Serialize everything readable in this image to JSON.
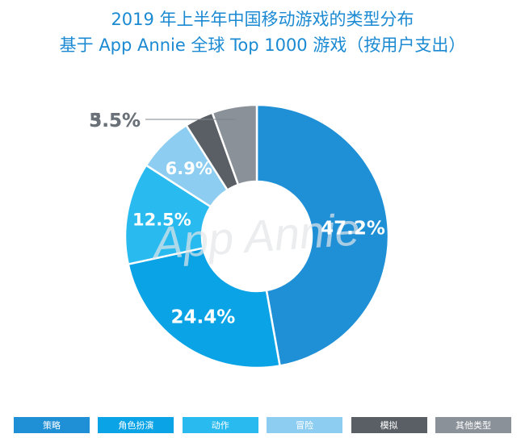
{
  "title": "2019 年上半年中国移动游戏的类型分布",
  "subtitle": "基于 App Annie 全球 Top 1000 游戏（按用户支出）",
  "watermark": "App Annie",
  "chart_data": {
    "type": "pie",
    "variant": "donut",
    "title": "2019 年上半年中国移动游戏的类型分布",
    "subtitle": "基于 App Annie 全球 Top 1000 游戏（按用户支出）",
    "unit": "%",
    "legend_position": "bottom",
    "slices": [
      {
        "label": "策略",
        "value": 47.2,
        "display": "47.2%",
        "color": "#1f8fd6"
      },
      {
        "label": "角色扮演",
        "value": 24.4,
        "display": "24.4%",
        "color": "#0aa3e6"
      },
      {
        "label": "动作",
        "value": 12.5,
        "display": "12.5%",
        "color": "#29bbef"
      },
      {
        "label": "冒险",
        "value": 6.9,
        "display": "6.9%",
        "color": "#8ccdf1"
      },
      {
        "label": "模拟",
        "value": 3.5,
        "display": "3.5%",
        "color": "#5a5f66"
      },
      {
        "label": "其他类型",
        "value": 5.5,
        "display": "5.5%",
        "color": "#8a9198"
      }
    ]
  }
}
